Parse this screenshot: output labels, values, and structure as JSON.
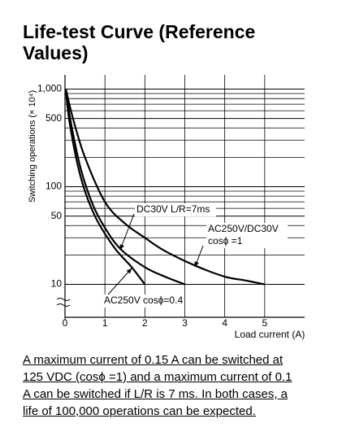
{
  "chart_data": {
    "type": "line",
    "title": "Life-test Curve (Reference Values)",
    "x_label": "Load current (A)",
    "y_label": "Switching operations (× 10⁴)",
    "xlim": [
      0,
      6
    ],
    "xticks": [
      0,
      1,
      2,
      3,
      4,
      5
    ],
    "ylim": [
      4.6,
      1400
    ],
    "log_y": true,
    "grid": true,
    "yticks": [
      10,
      50,
      100,
      500,
      {
        "value": 1000,
        "label": "1,000"
      }
    ],
    "minor_yticks": [
      20,
      30,
      40,
      60,
      70,
      80,
      90,
      200,
      300,
      400,
      600,
      700,
      800,
      900
    ],
    "series": [
      {
        "name": "AC250V cosϕ=0.4",
        "color": "#000000",
        "x": [
          0.02,
          0.1,
          0.3,
          0.5,
          0.75,
          1,
          1.3,
          1.67,
          2
        ],
        "values": [
          1000,
          500,
          180,
          90,
          50,
          33,
          22,
          15,
          10
        ]
      },
      {
        "name": "DC30V L/R=7ms",
        "color": "#000000",
        "x": [
          0.02,
          0.15,
          0.4,
          0.7,
          1,
          1.39,
          2,
          2.5,
          3
        ],
        "values": [
          1000,
          450,
          150,
          65,
          38,
          23,
          15,
          12,
          10
        ]
      },
      {
        "name": "AC250V/DC30V cosϕ=1",
        "color": "#000000",
        "x": [
          0.02,
          0.2,
          0.5,
          1,
          1.5,
          2,
          2.5,
          3.27,
          4,
          4.5,
          5
        ],
        "values": [
          1000,
          500,
          200,
          70,
          42,
          30,
          22,
          15.5,
          12,
          11,
          10
        ]
      }
    ],
    "annotations": [
      {
        "text": [
          "DC30V L/R=7ms"
        ]
      },
      {
        "text": [
          "AC250V/DC30V",
          "cosϕ =1"
        ]
      },
      {
        "text": [
          "AC250V  cosϕ=0.4"
        ]
      }
    ]
  },
  "caption": [
    "A maximum current of 0.15 A can be switched at",
    "125 VDC (cosϕ =1) and a maximum current of 0.1",
    "A can be switched if L/R is 7 ms. In both cases, a",
    "life of 100,000 operations can be expected."
  ]
}
